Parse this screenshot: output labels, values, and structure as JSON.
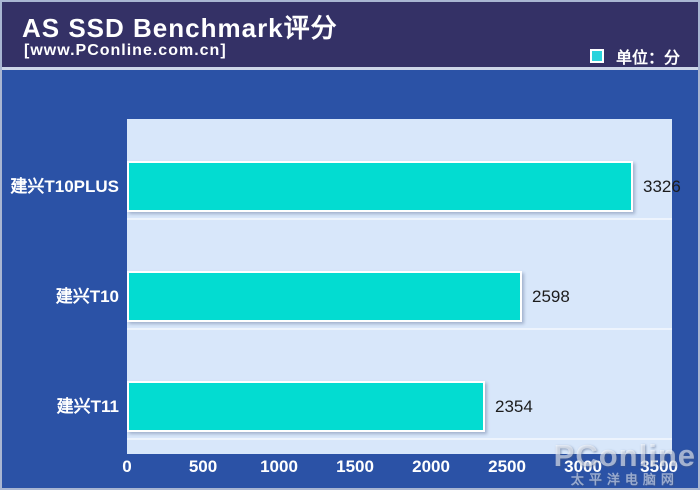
{
  "header": {
    "title": "AS SSD Benchmark评分",
    "subtitle": "[www.PConline.com.cn]",
    "legend_label": "单位：分"
  },
  "watermark": {
    "brand": "PConline",
    "sub": "太平洋电脑网"
  },
  "colors": {
    "header_bg": "#343166",
    "body_bg": "#2b52a6",
    "plot_bg": "#d8e7fa",
    "bar_fill": "#03dcd1",
    "legend_swatch": "#2bd3dc",
    "value_text": "#1c1c1c",
    "label_text": "#ffffff"
  },
  "chart_data": {
    "type": "bar",
    "orientation": "horizontal",
    "title": "AS SSD Benchmark评分",
    "source": "[www.PConline.com.cn]",
    "unit_legend": "单位：分",
    "categories": [
      "建兴T10PLUS",
      "建兴T10",
      "建兴T11"
    ],
    "values": [
      3326,
      2598,
      2354
    ],
    "x_ticks": [
      0,
      500,
      1000,
      1500,
      2000,
      2500,
      3000,
      3500
    ],
    "xlim": [
      0,
      3585
    ],
    "grid": false,
    "legend_position": "top-right"
  }
}
